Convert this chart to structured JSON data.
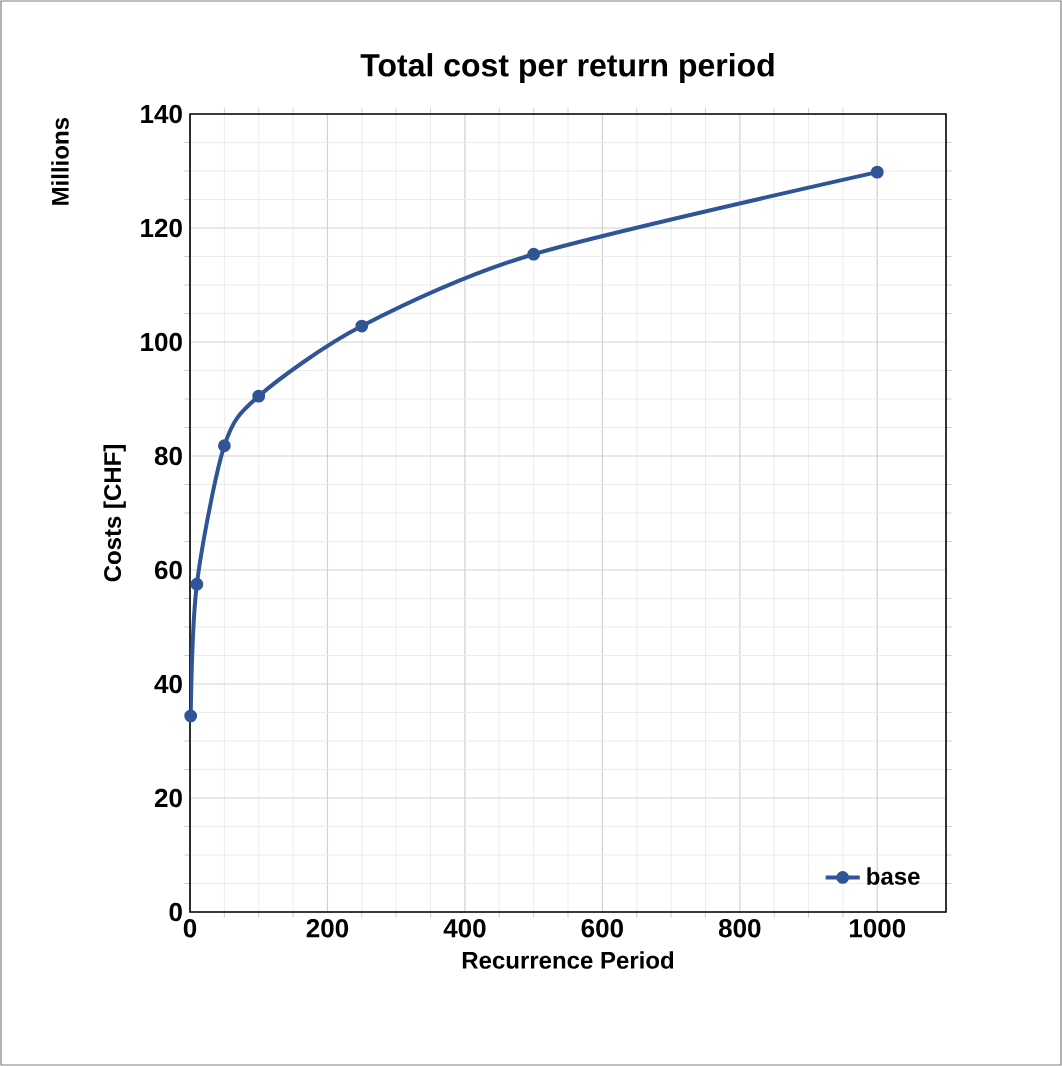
{
  "chart_data": {
    "type": "line",
    "title": "Total cost per return period",
    "xlabel": "Recurrence Period",
    "ylabel": "Costs [CHF]",
    "annotations": [
      "Millions"
    ],
    "x": [
      1,
      10,
      50,
      100,
      250,
      500,
      1000
    ],
    "series": [
      {
        "name": "base",
        "color": "#2f5597",
        "values": [
          34.4,
          57.5,
          81.8,
          90.5,
          102.8,
          115.4,
          129.8
        ]
      }
    ],
    "xlim": [
      0,
      1100
    ],
    "xticks": [
      0,
      200,
      400,
      600,
      800,
      1000
    ],
    "ylim": [
      0,
      140
    ],
    "yticks": [
      0,
      20,
      40,
      60,
      80,
      100,
      120,
      140
    ],
    "grid": true,
    "legend": "bottom right",
    "marker": "circle",
    "line_style": "solid"
  }
}
